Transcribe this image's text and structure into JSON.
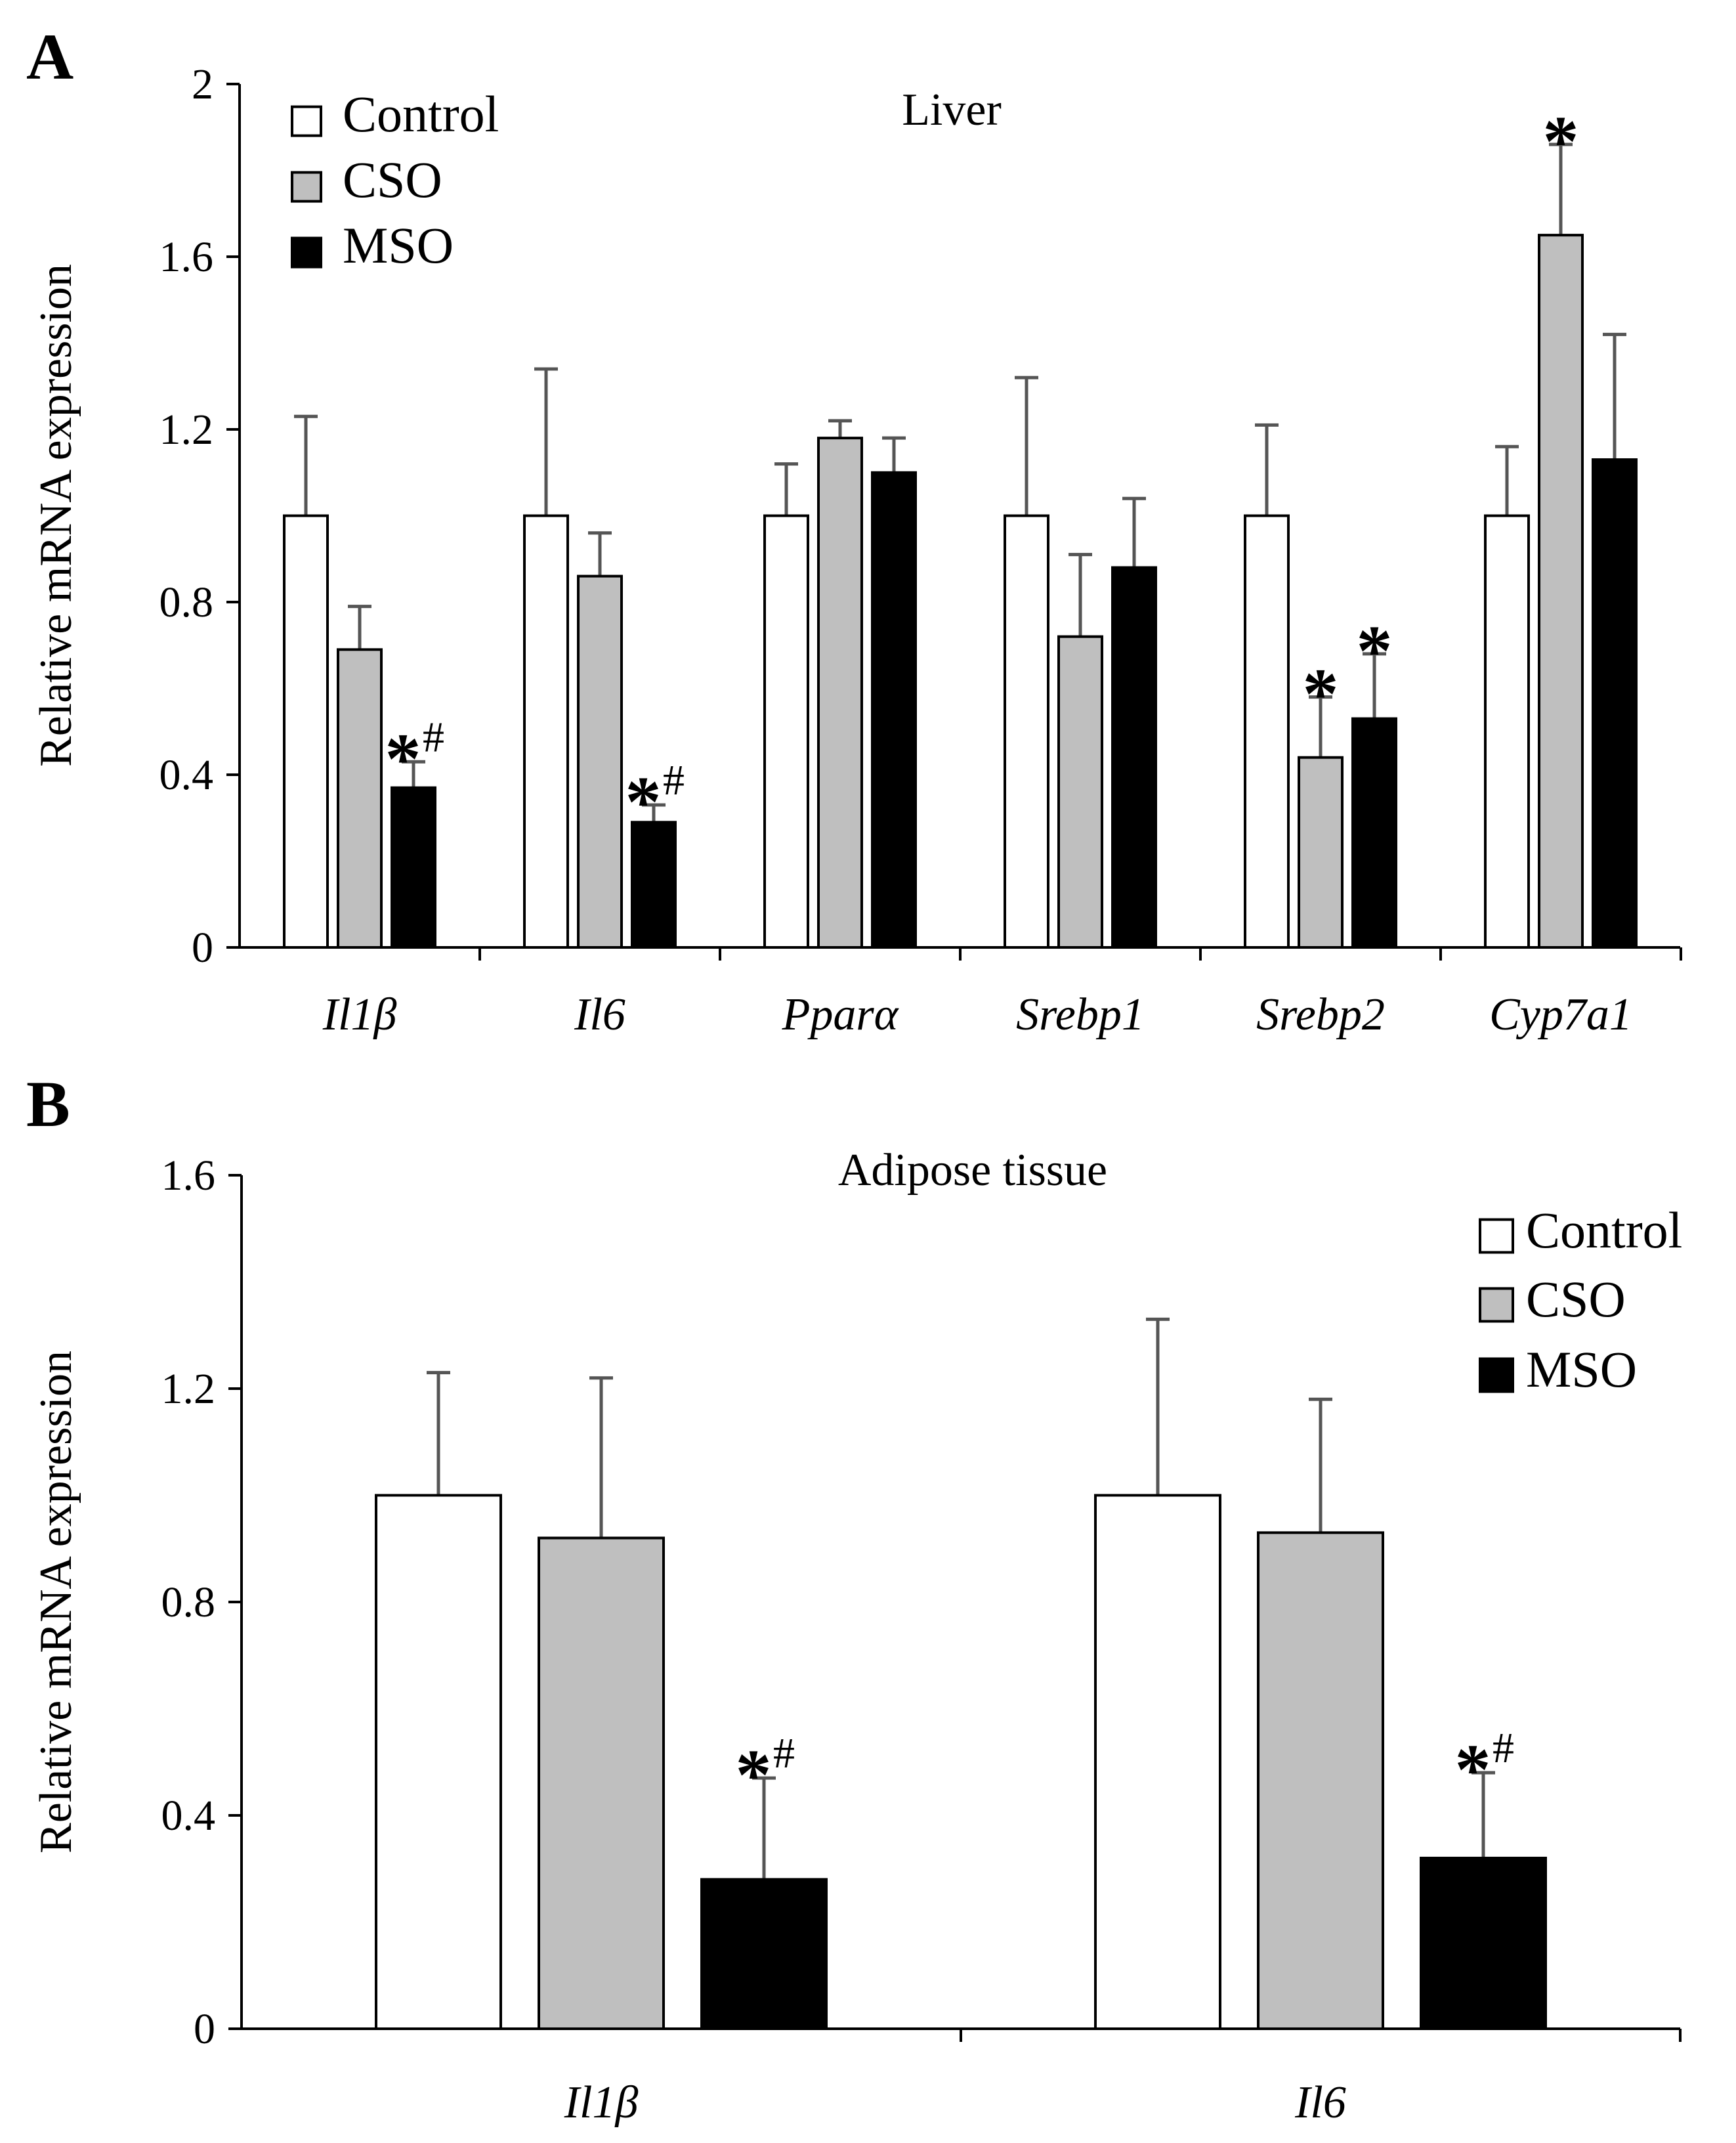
{
  "colors": {
    "Control": "#ffffff",
    "CSO": "#bfbfbf",
    "MSO": "#000000",
    "error_bar": "#555555",
    "axis": "#000000"
  },
  "chart_data": [
    {
      "panel_label": "A",
      "type": "bar",
      "title": "Liver",
      "ylabel": "Relative mRNA expression",
      "ylim": [
        0,
        2
      ],
      "yticks": [
        "0",
        "0.4",
        "0.8",
        "1.2",
        "1.6",
        "2"
      ],
      "categories": [
        "Il1β",
        "Il6",
        "Pparα",
        "Srebp1",
        "Srebp2",
        "Cyp7a1"
      ],
      "legend": {
        "position": "top-left",
        "entries": [
          "Control",
          "CSO",
          "MSO"
        ]
      },
      "series": [
        {
          "name": "Control",
          "values": [
            1.0,
            1.0,
            1.0,
            1.0,
            1.0,
            1.0
          ],
          "errors": [
            0.23,
            0.34,
            0.12,
            0.32,
            0.21,
            0.16
          ],
          "annotations": [
            "",
            "",
            "",
            "",
            "",
            ""
          ]
        },
        {
          "name": "CSO",
          "values": [
            0.69,
            0.86,
            1.18,
            0.72,
            0.44,
            1.65
          ],
          "errors": [
            0.1,
            0.1,
            0.04,
            0.19,
            0.14,
            0.21
          ],
          "annotations": [
            "",
            "",
            "",
            "",
            "*",
            "*"
          ]
        },
        {
          "name": "MSO",
          "values": [
            0.37,
            0.29,
            1.1,
            0.88,
            0.53,
            1.13
          ],
          "errors": [
            0.06,
            0.04,
            0.08,
            0.16,
            0.15,
            0.29
          ],
          "annotations": [
            "*#",
            "*#",
            "",
            "",
            "*",
            ""
          ]
        }
      ]
    },
    {
      "panel_label": "B",
      "type": "bar",
      "title": "Adipose tissue",
      "ylabel": "Relative mRNA expression",
      "ylim": [
        0,
        1.6
      ],
      "yticks": [
        "0",
        "0.4",
        "0.8",
        "1.2",
        "1.6"
      ],
      "categories": [
        "Il1β",
        "Il6"
      ],
      "legend": {
        "position": "top-right",
        "entries": [
          "Control",
          "CSO",
          "MSO"
        ]
      },
      "series": [
        {
          "name": "Control",
          "values": [
            1.0,
            1.0
          ],
          "errors": [
            0.23,
            0.33
          ],
          "annotations": [
            "",
            ""
          ]
        },
        {
          "name": "CSO",
          "values": [
            0.92,
            0.93
          ],
          "errors": [
            0.3,
            0.25
          ],
          "annotations": [
            "",
            ""
          ]
        },
        {
          "name": "MSO",
          "values": [
            0.28,
            0.32
          ],
          "errors": [
            0.19,
            0.16
          ],
          "annotations": [
            "*#",
            "*#"
          ]
        }
      ]
    }
  ]
}
